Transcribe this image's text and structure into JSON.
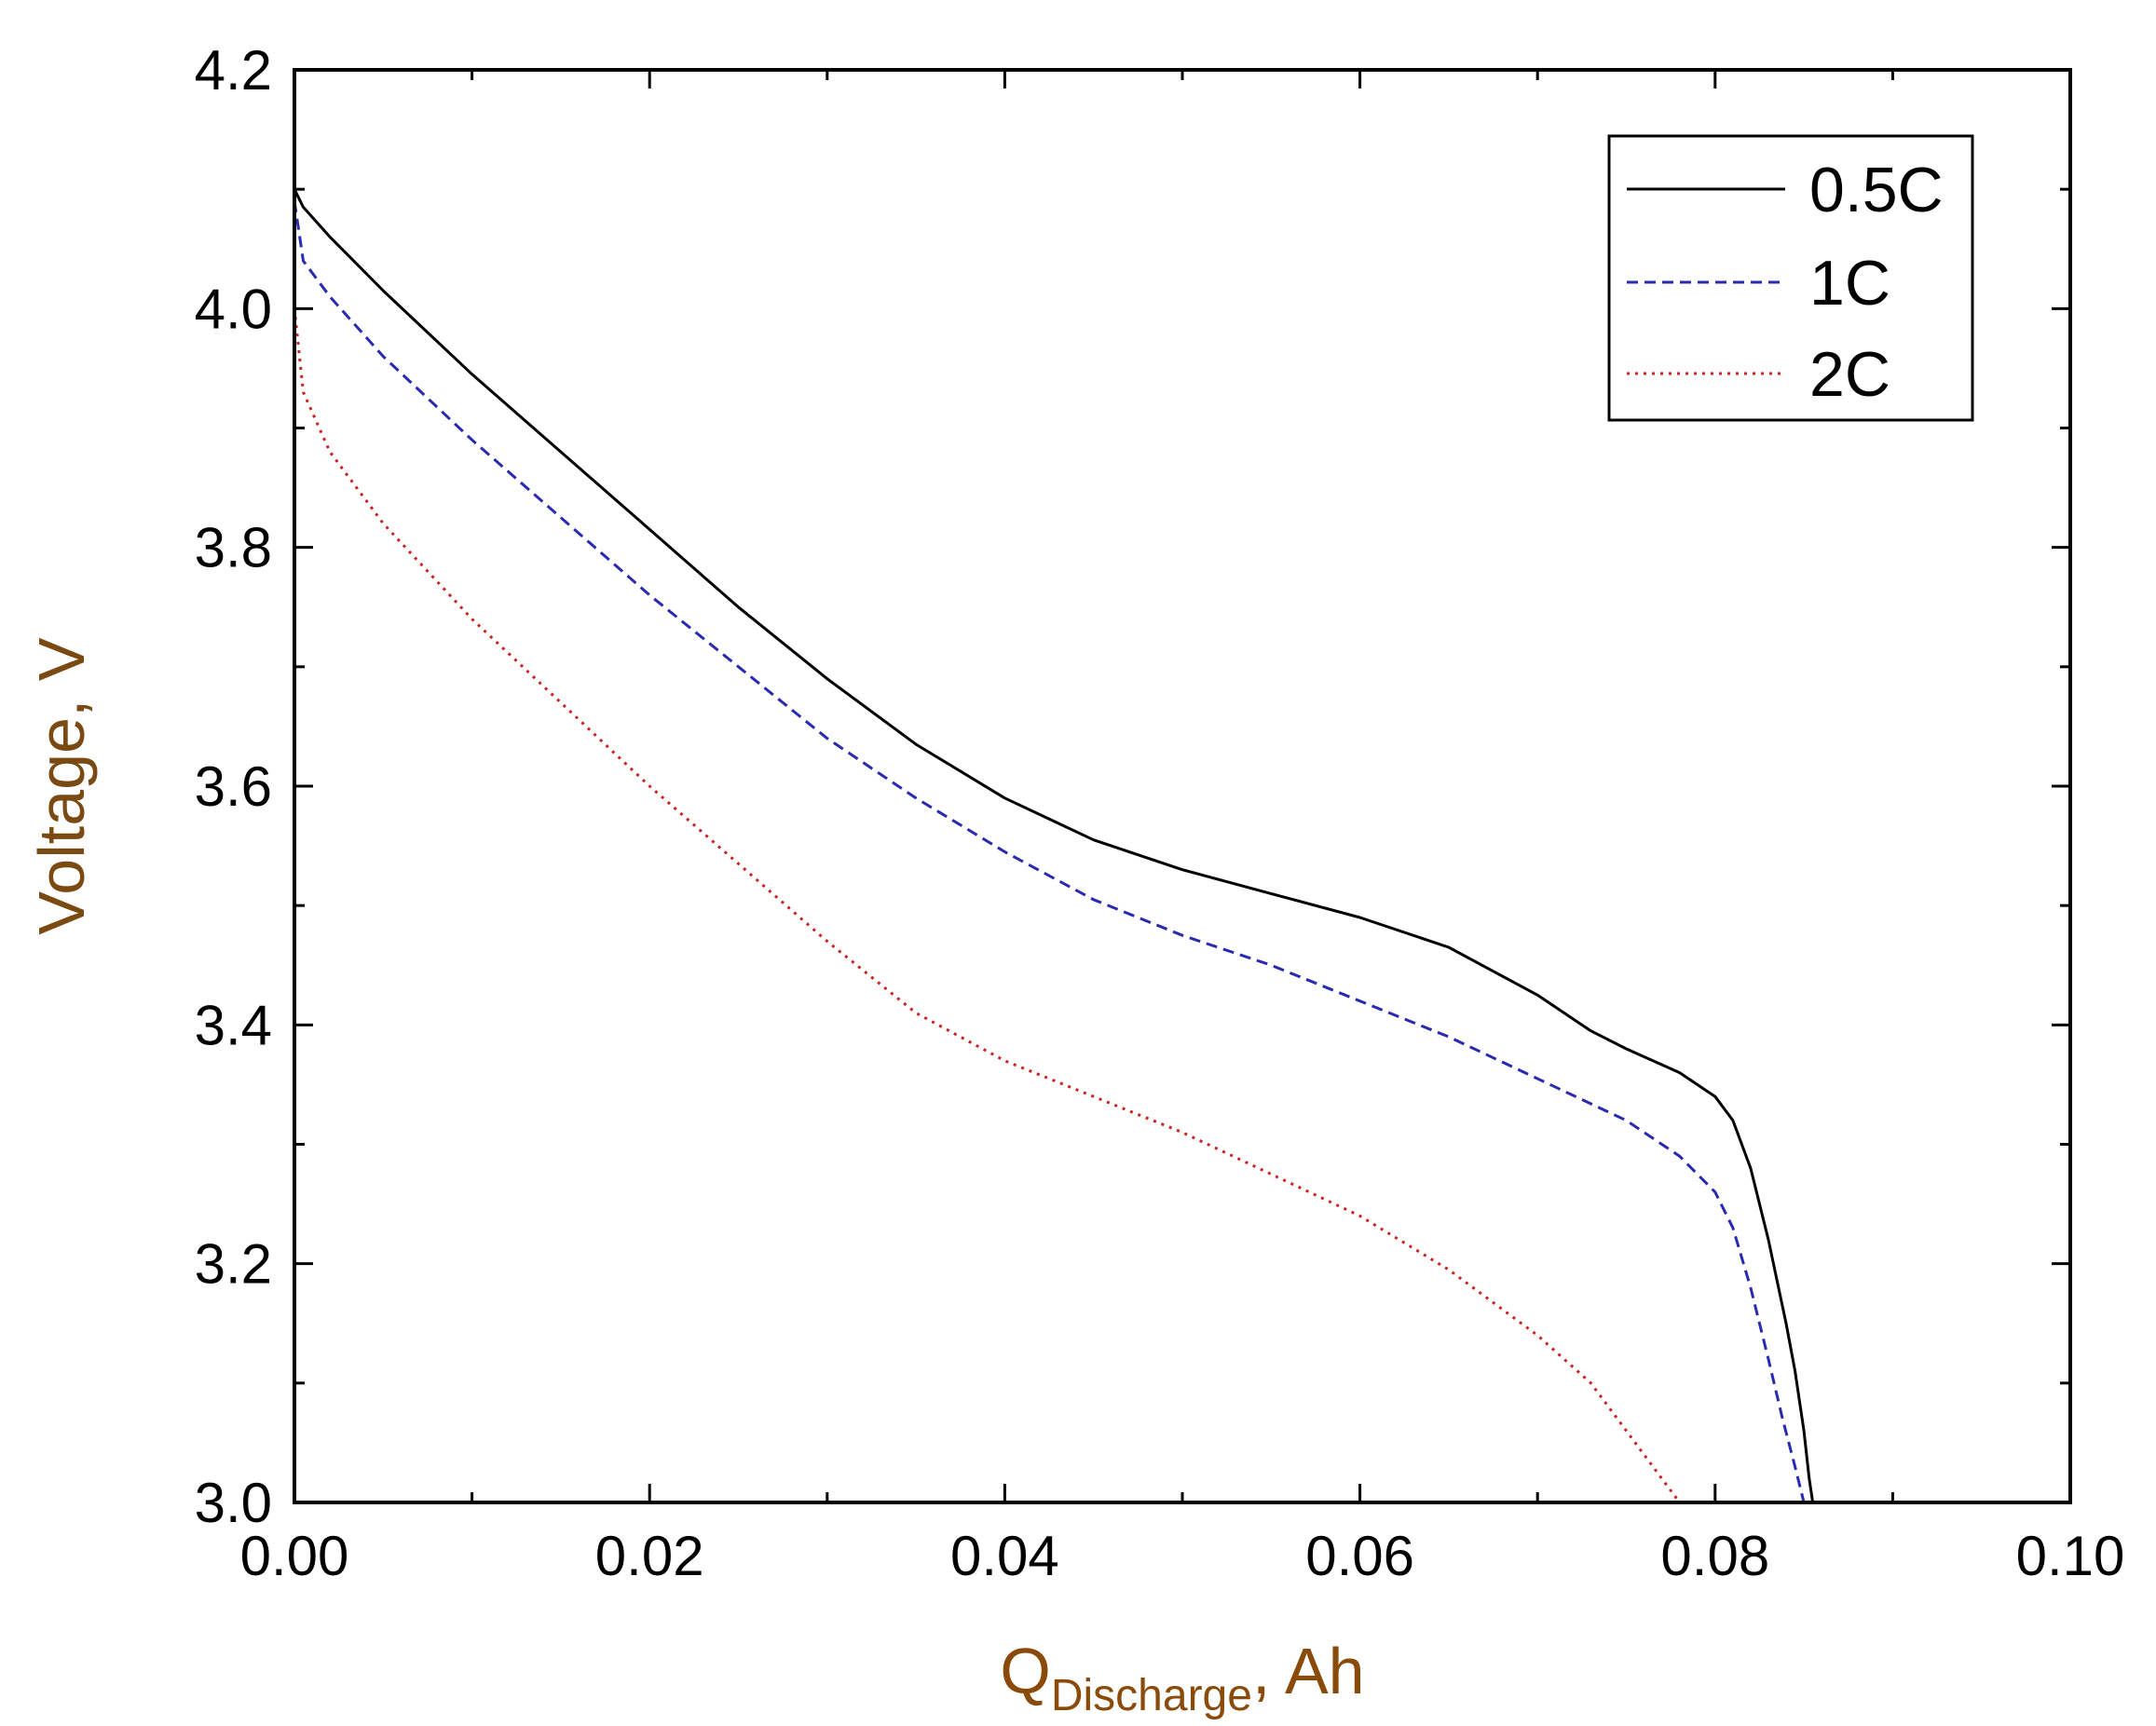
{
  "chart_data": {
    "type": "line",
    "xlabel": {
      "main": "Q",
      "sub": "Discharge",
      "suffix": ", Ah"
    },
    "ylabel": "Voltage, V",
    "xlim": [
      0.0,
      0.1
    ],
    "ylim": [
      3.0,
      4.2
    ],
    "xticks": [
      0.0,
      0.02,
      0.04,
      0.06,
      0.08,
      0.1
    ],
    "xtick_labels": [
      "0.00",
      "0.02",
      "0.04",
      "0.06",
      "0.08",
      "0.10"
    ],
    "yticks": [
      3.0,
      3.2,
      3.4,
      3.6,
      3.8,
      4.0,
      4.2
    ],
    "ytick_labels": [
      "3.0",
      "3.2",
      "3.4",
      "3.6",
      "3.8",
      "4.0",
      "4.2"
    ],
    "grid": false,
    "legend_position": "top-right",
    "colors": {
      "axis_title": "#8a4b0a",
      "ylabel": "#7a4a12"
    },
    "series": [
      {
        "name": "0.5C",
        "color": "#000000",
        "style": "solid",
        "x": [
          0,
          0.0005,
          0.002,
          0.005,
          0.01,
          0.015,
          0.02,
          0.025,
          0.03,
          0.035,
          0.04,
          0.045,
          0.05,
          0.055,
          0.06,
          0.065,
          0.07,
          0.073,
          0.075,
          0.078,
          0.08,
          0.081,
          0.082,
          0.083,
          0.084,
          0.0845,
          0.085,
          0.0853,
          0.0855
        ],
        "y": [
          4.1,
          4.085,
          4.06,
          4.015,
          3.945,
          3.88,
          3.815,
          3.75,
          3.69,
          3.635,
          3.59,
          3.555,
          3.53,
          3.51,
          3.49,
          3.465,
          3.425,
          3.395,
          3.38,
          3.36,
          3.34,
          3.32,
          3.28,
          3.22,
          3.15,
          3.11,
          3.06,
          3.02,
          3.0
        ]
      },
      {
        "name": "1C",
        "color": "#2a2ab0",
        "style": "dashed",
        "x": [
          0,
          0.0005,
          0.002,
          0.005,
          0.01,
          0.015,
          0.02,
          0.025,
          0.03,
          0.035,
          0.04,
          0.045,
          0.05,
          0.055,
          0.06,
          0.065,
          0.07,
          0.075,
          0.078,
          0.08,
          0.081,
          0.082,
          0.083,
          0.0838,
          0.0845,
          0.085
        ],
        "y": [
          4.09,
          4.04,
          4.01,
          3.96,
          3.89,
          3.825,
          3.76,
          3.7,
          3.64,
          3.59,
          3.545,
          3.505,
          3.475,
          3.45,
          3.42,
          3.39,
          3.355,
          3.32,
          3.29,
          3.26,
          3.23,
          3.18,
          3.12,
          3.07,
          3.03,
          3.0
        ]
      },
      {
        "name": "2C",
        "color": "#cc2222",
        "style": "dotted",
        "x": [
          0,
          0.0005,
          0.002,
          0.005,
          0.01,
          0.015,
          0.02,
          0.025,
          0.03,
          0.035,
          0.04,
          0.045,
          0.05,
          0.055,
          0.06,
          0.065,
          0.07,
          0.073,
          0.075,
          0.077,
          0.078
        ],
        "y": [
          4.0,
          3.93,
          3.88,
          3.82,
          3.74,
          3.67,
          3.6,
          3.535,
          3.47,
          3.41,
          3.37,
          3.34,
          3.31,
          3.275,
          3.24,
          3.195,
          3.14,
          3.1,
          3.06,
          3.02,
          3.0
        ]
      }
    ]
  }
}
